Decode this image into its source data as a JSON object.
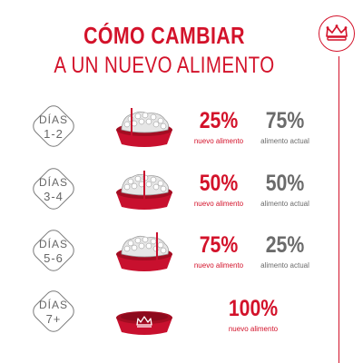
{
  "title": {
    "line1": "CÓMO CAMBIAR",
    "line2": "A UN NUEVO ALIMENTO"
  },
  "brand": {
    "logo_icon": "royal-crown-icon",
    "accent_color": "#d3122a",
    "gray_color": "#6b6b6b"
  },
  "steps": [
    {
      "day_label": "DÍAS",
      "day_range": "1-2",
      "new_pct": "25%",
      "new_caption": "nuevo alimento",
      "old_pct": "75%",
      "old_caption": "alimento actual"
    },
    {
      "day_label": "DÍAS",
      "day_range": "3-4",
      "new_pct": "50%",
      "new_caption": "nuevo alimento",
      "old_pct": "50%",
      "old_caption": "alimento actual"
    },
    {
      "day_label": "DÍAS",
      "day_range": "5-6",
      "new_pct": "75%",
      "new_caption": "nuevo alimento",
      "old_pct": "25%",
      "old_caption": "alimento actual"
    },
    {
      "day_label": "DÍAS",
      "day_range": "7+",
      "new_pct": "100%",
      "new_caption": "nuevo alimento"
    }
  ]
}
